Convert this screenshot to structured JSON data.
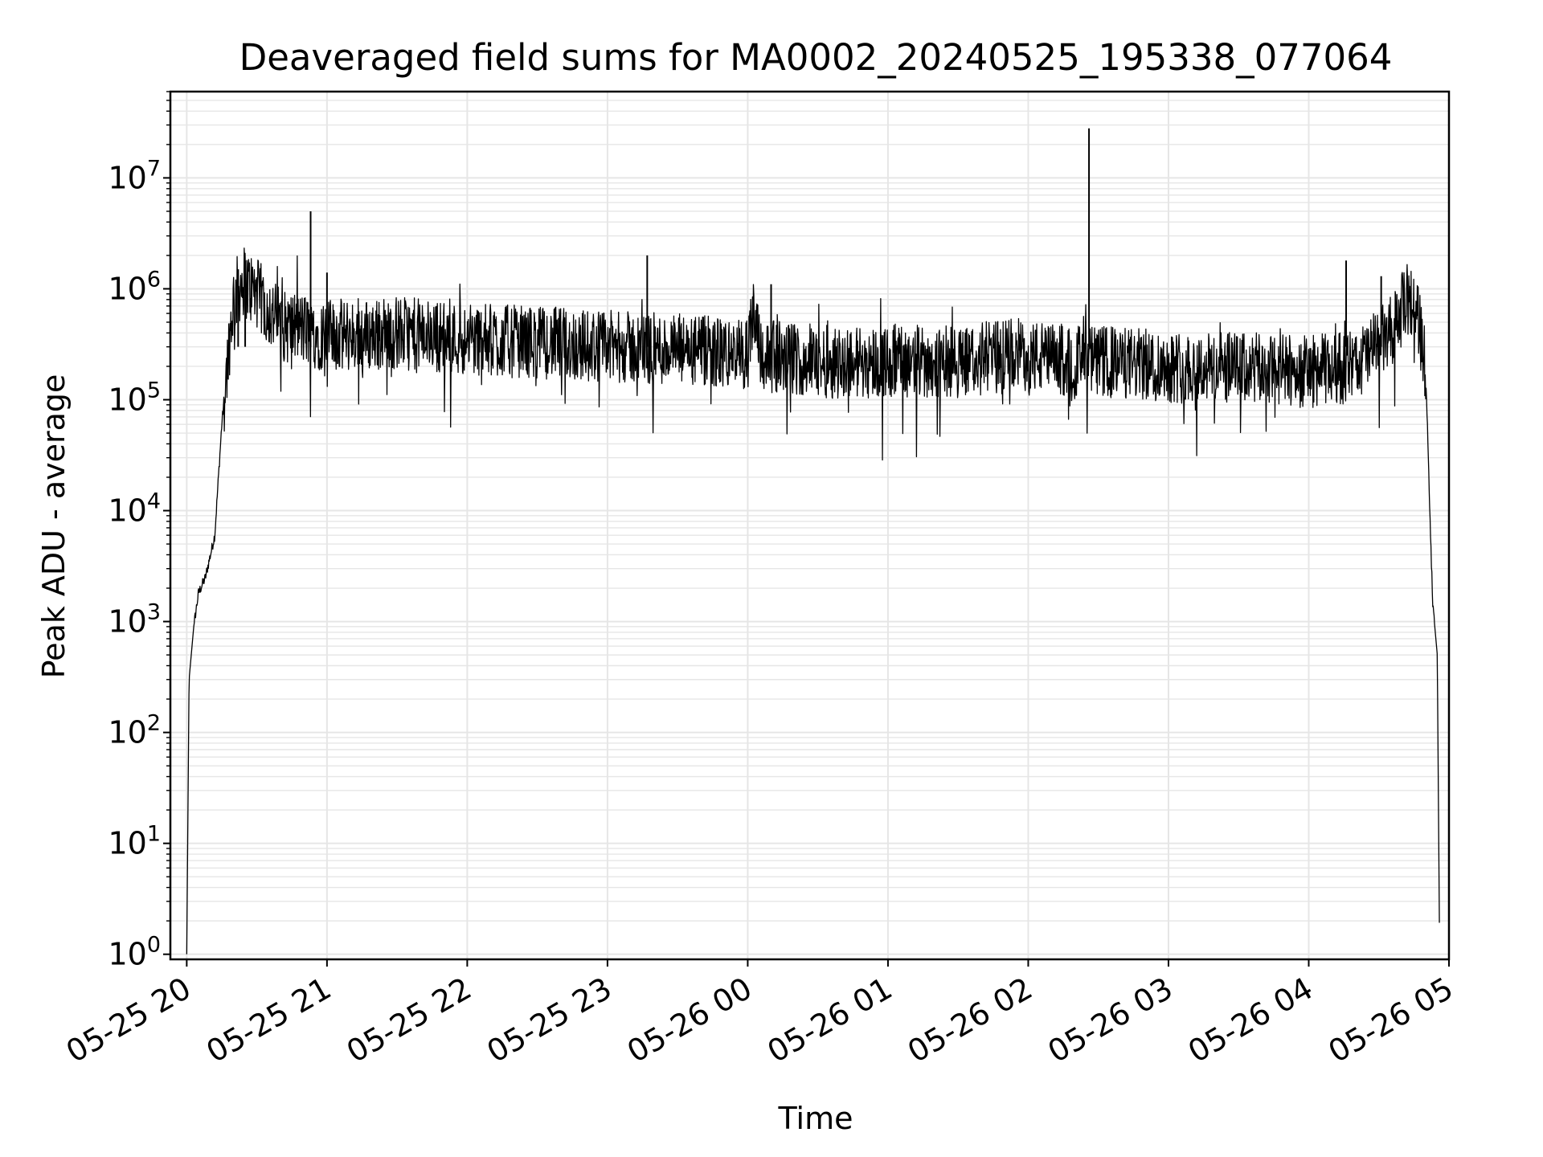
{
  "chart_data": {
    "type": "line",
    "title": "Deaveraged field sums for MA0002_20240525_195338_077064",
    "xlabel": "Time",
    "ylabel": "Peak ADU - average",
    "yscale": "log",
    "ylim": [
      0.9,
      60000000
    ],
    "xlim": [
      "2024-05-25T19:53",
      "2024-05-26T05:00"
    ],
    "x_ticks": [
      "05-25 20",
      "05-25 21",
      "05-25 22",
      "05-25 23",
      "05-26 00",
      "05-26 01",
      "05-26 02",
      "05-26 03",
      "05-26 04",
      "05-26 05"
    ],
    "y_ticks": [
      {
        "base": "10",
        "exp": "0"
      },
      {
        "base": "10",
        "exp": "1"
      },
      {
        "base": "10",
        "exp": "2"
      },
      {
        "base": "10",
        "exp": "3"
      },
      {
        "base": "10",
        "exp": "4"
      },
      {
        "base": "10",
        "exp": "5"
      },
      {
        "base": "10",
        "exp": "6"
      },
      {
        "base": "10",
        "exp": "7"
      }
    ],
    "grid": true,
    "line_color": "#000000",
    "grid_color": "#e6e6e6",
    "series": [
      {
        "x": [
          "2024-05-25T20:00",
          "2024-05-25T20:01",
          "2024-05-25T20:03",
          "2024-05-25T20:05",
          "2024-05-25T20:08",
          "2024-05-25T20:12",
          "2024-05-25T20:15",
          "2024-05-25T20:18",
          "2024-05-25T20:20",
          "2024-05-25T20:24",
          "2024-05-25T20:30",
          "2024-05-25T20:36",
          "2024-05-25T20:42",
          "2024-05-25T20:48",
          "2024-05-25T20:54",
          "2024-05-25T21:00",
          "2024-05-25T21:15",
          "2024-05-25T21:30",
          "2024-05-25T21:45",
          "2024-05-25T22:00",
          "2024-05-25T22:30",
          "2024-05-25T23:00",
          "2024-05-25T23:30",
          "2024-05-26T00:00",
          "2024-05-26T00:03",
          "2024-05-26T00:06",
          "2024-05-26T00:30",
          "2024-05-26T01:00",
          "2024-05-26T01:30",
          "2024-05-26T01:55",
          "2024-05-26T02:10",
          "2024-05-26T02:30",
          "2024-05-26T03:00",
          "2024-05-26T03:30",
          "2024-05-26T04:00",
          "2024-05-26T04:20",
          "2024-05-26T04:35",
          "2024-05-26T04:42",
          "2024-05-26T04:46",
          "2024-05-26T04:50",
          "2024-05-26T04:53",
          "2024-05-26T04:55",
          "2024-05-26T04:56"
        ],
        "values": [
          1,
          300,
          900,
          1800,
          2500,
          6000,
          60000,
          300000,
          800000,
          1200000,
          900000,
          600000,
          450000,
          450000,
          400000,
          380000,
          380000,
          400000,
          380000,
          350000,
          330000,
          300000,
          280000,
          250000,
          700000,
          250000,
          220000,
          220000,
          220000,
          260000,
          230000,
          220000,
          200000,
          190000,
          180000,
          200000,
          400000,
          800000,
          700000,
          200000,
          1500,
          500,
          1
        ]
      }
    ],
    "spikes": [
      {
        "x": "2024-05-25T20:22",
        "value": 1500000
      },
      {
        "x": "2024-05-25T20:25",
        "value": 1800000
      },
      {
        "x": "2024-05-25T20:53",
        "value": 5000000
      },
      {
        "x": "2024-05-25T21:00",
        "value": 1400000
      },
      {
        "x": "2024-05-25T23:17",
        "value": 2000000
      },
      {
        "x": "2024-05-26T00:10",
        "value": 1100000
      },
      {
        "x": "2024-05-26T02:26",
        "value": 28000000
      },
      {
        "x": "2024-05-26T04:16",
        "value": 1800000
      },
      {
        "x": "2024-05-26T04:31",
        "value": 1300000
      }
    ]
  }
}
